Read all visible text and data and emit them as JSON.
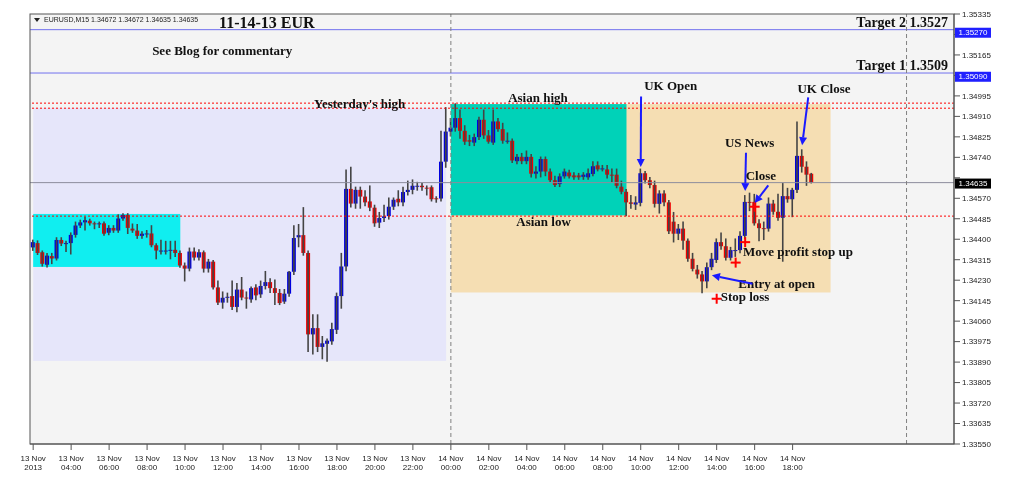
{
  "chart_data": {
    "type": "candlestick",
    "title": "11-14-13  EUR",
    "subtitle": "EURUSD,M15  1.34672 1.34672 1.34635 1.34635",
    "x": [
      "2013-11-13T02:00",
      "2013-11-13T02:15",
      "2013-11-13T02:30",
      "2013-11-13T02:45",
      "2013-11-13T03:00",
      "2013-11-13T03:15",
      "2013-11-13T03:30",
      "2013-11-13T03:45",
      "2013-11-13T04:00",
      "2013-11-13T04:15",
      "2013-11-13T04:30",
      "2013-11-13T04:45",
      "2013-11-13T05:00",
      "2013-11-13T05:15",
      "2013-11-13T05:30",
      "2013-11-13T05:45",
      "2013-11-13T06:00",
      "2013-11-13T06:15",
      "2013-11-13T06:30",
      "2013-11-13T06:45",
      "2013-11-13T07:00",
      "2013-11-13T07:15",
      "2013-11-13T07:30",
      "2013-11-13T07:45",
      "2013-11-13T08:00",
      "2013-11-13T08:15",
      "2013-11-13T08:30",
      "2013-11-13T08:45",
      "2013-11-13T09:00",
      "2013-11-13T09:15",
      "2013-11-13T09:30",
      "2013-11-13T09:45",
      "2013-11-13T10:00",
      "2013-11-13T10:15",
      "2013-11-13T10:30",
      "2013-11-13T10:45",
      "2013-11-13T11:00",
      "2013-11-13T11:15",
      "2013-11-13T11:30",
      "2013-11-13T11:45",
      "2013-11-13T12:00",
      "2013-11-13T12:15",
      "2013-11-13T12:30",
      "2013-11-13T12:45",
      "2013-11-13T13:00",
      "2013-11-13T13:15",
      "2013-11-13T13:30",
      "2013-11-13T13:45",
      "2013-11-13T14:00",
      "2013-11-13T14:15",
      "2013-11-13T14:30",
      "2013-11-13T14:45",
      "2013-11-13T15:00",
      "2013-11-13T15:15",
      "2013-11-13T15:30",
      "2013-11-13T15:45",
      "2013-11-13T16:00",
      "2013-11-13T16:15",
      "2013-11-13T16:30",
      "2013-11-13T16:45",
      "2013-11-13T17:00",
      "2013-11-13T17:15",
      "2013-11-13T17:30",
      "2013-11-13T17:45",
      "2013-11-13T18:00",
      "2013-11-13T18:15",
      "2013-11-13T18:30",
      "2013-11-13T18:45",
      "2013-11-13T19:00",
      "2013-11-13T19:15",
      "2013-11-13T19:30",
      "2013-11-13T19:45",
      "2013-11-13T20:00",
      "2013-11-13T20:15",
      "2013-11-13T20:30",
      "2013-11-13T20:45",
      "2013-11-13T21:00",
      "2013-11-13T21:15",
      "2013-11-13T21:30",
      "2013-11-13T21:45",
      "2013-11-13T22:00",
      "2013-11-13T22:15",
      "2013-11-13T22:30",
      "2013-11-13T22:45",
      "2013-11-13T23:00",
      "2013-11-13T23:15",
      "2013-11-13T23:30",
      "2013-11-13T23:45",
      "2013-11-14T00:00",
      "2013-11-14T00:15",
      "2013-11-14T00:30",
      "2013-11-14T00:45",
      "2013-11-14T01:00",
      "2013-11-14T01:15",
      "2013-11-14T01:30",
      "2013-11-14T01:45",
      "2013-11-14T02:00",
      "2013-11-14T02:15",
      "2013-11-14T02:30",
      "2013-11-14T02:45",
      "2013-11-14T03:00",
      "2013-11-14T03:15",
      "2013-11-14T03:30",
      "2013-11-14T03:45",
      "2013-11-14T04:00",
      "2013-11-14T04:15",
      "2013-11-14T04:30",
      "2013-11-14T04:45",
      "2013-11-14T05:00",
      "2013-11-14T05:15",
      "2013-11-14T05:30",
      "2013-11-14T05:45",
      "2013-11-14T06:00",
      "2013-11-14T06:15",
      "2013-11-14T06:30",
      "2013-11-14T06:45",
      "2013-11-14T07:00",
      "2013-11-14T07:15",
      "2013-11-14T07:30",
      "2013-11-14T07:45",
      "2013-11-14T08:00",
      "2013-11-14T08:15",
      "2013-11-14T08:30",
      "2013-11-14T08:45",
      "2013-11-14T09:00",
      "2013-11-14T09:15",
      "2013-11-14T09:30",
      "2013-11-14T09:45",
      "2013-11-14T10:00",
      "2013-11-14T10:15",
      "2013-11-14T10:30",
      "2013-11-14T10:45",
      "2013-11-14T11:00",
      "2013-11-14T11:15",
      "2013-11-14T11:30",
      "2013-11-14T11:45",
      "2013-11-14T12:00",
      "2013-11-14T12:15",
      "2013-11-14T12:30",
      "2013-11-14T12:45",
      "2013-11-14T13:00",
      "2013-11-14T13:15",
      "2013-11-14T13:30",
      "2013-11-14T13:45",
      "2013-11-14T14:00",
      "2013-11-14T14:15",
      "2013-11-14T14:30",
      "2013-11-14T14:45",
      "2013-11-14T15:00",
      "2013-11-14T15:15",
      "2013-11-14T15:30",
      "2013-11-14T15:45",
      "2013-11-14T16:00",
      "2013-11-14T16:15",
      "2013-11-14T16:30",
      "2013-11-14T16:45",
      "2013-11-14T17:00",
      "2013-11-14T17:15",
      "2013-11-14T17:30",
      "2013-11-14T17:45",
      "2013-11-14T18:00",
      "2013-11-14T18:15",
      "2013-11-14T18:30",
      "2013-11-14T18:45",
      "2013-11-14T19:00"
    ],
    "ohlc": [
      [
        1.34366,
        1.34395,
        1.34355,
        1.34388
      ],
      [
        1.34384,
        1.34392,
        1.34338,
        1.34343
      ],
      [
        1.34346,
        1.3435,
        1.3429,
        1.34298
      ],
      [
        1.34294,
        1.3434,
        1.34286,
        1.34332
      ],
      [
        1.3433,
        1.3434,
        1.343,
        1.3432
      ],
      [
        1.3432,
        1.34405,
        1.34315,
        1.34397
      ],
      [
        1.34397,
        1.34405,
        1.34375,
        1.34382
      ],
      [
        1.34382,
        1.3439,
        1.3435,
        1.34384
      ],
      [
        1.34384,
        1.34425,
        1.3434,
        1.34418
      ],
      [
        1.34418,
        1.3447,
        1.3441,
        1.34457
      ],
      [
        1.34457,
        1.34478,
        1.3445,
        1.3447
      ],
      [
        1.3447,
        1.3449,
        1.3444,
        1.34479
      ],
      [
        1.34477,
        1.34482,
        1.3446,
        1.34466
      ],
      [
        1.34466,
        1.3447,
        1.34445,
        1.34465
      ],
      [
        1.34465,
        1.3447,
        1.3445,
        1.34466
      ],
      [
        1.34466,
        1.3447,
        1.34418,
        1.34423
      ],
      [
        1.34427,
        1.34455,
        1.3442,
        1.34447
      ],
      [
        1.34447,
        1.34455,
        1.3443,
        1.34436
      ],
      [
        1.34436,
        1.345,
        1.3443,
        1.34486
      ],
      [
        1.34486,
        1.34505,
        1.3448,
        1.34501
      ],
      [
        1.34501,
        1.34505,
        1.34425,
        1.34447
      ],
      [
        1.34444,
        1.34462,
        1.3443,
        1.34436
      ],
      [
        1.34436,
        1.3446,
        1.34405,
        1.34414
      ],
      [
        1.34414,
        1.3443,
        1.34405,
        1.34423
      ],
      [
        1.34423,
        1.34435,
        1.3441,
        1.34424
      ],
      [
        1.34424,
        1.34455,
        1.3437,
        1.34375
      ],
      [
        1.34375,
        1.3438,
        1.3432,
        1.34353
      ],
      [
        1.34353,
        1.34395,
        1.3434,
        1.34353
      ],
      [
        1.34353,
        1.3439,
        1.3434,
        1.34353
      ],
      [
        1.34353,
        1.3439,
        1.3432,
        1.34356
      ],
      [
        1.34356,
        1.3439,
        1.3433,
        1.34343
      ],
      [
        1.34343,
        1.3435,
        1.34285,
        1.34291
      ],
      [
        1.34291,
        1.343,
        1.34228,
        1.34278
      ],
      [
        1.34278,
        1.34362,
        1.3427,
        1.34349
      ],
      [
        1.34349,
        1.34362,
        1.34315,
        1.34324
      ],
      [
        1.34324,
        1.34355,
        1.34315,
        1.34346
      ],
      [
        1.34346,
        1.3435,
        1.34265,
        1.34278
      ],
      [
        1.34278,
        1.34315,
        1.34265,
        1.34307
      ],
      [
        1.34307,
        1.3431,
        1.34195,
        1.342
      ],
      [
        1.342,
        1.34225,
        1.3413,
        1.34137
      ],
      [
        1.34137,
        1.3418,
        1.34115,
        1.34157
      ],
      [
        1.34157,
        1.34175,
        1.3414,
        1.34161
      ],
      [
        1.34164,
        1.34225,
        1.3411,
        1.34119
      ],
      [
        1.34119,
        1.34215,
        1.341,
        1.34191
      ],
      [
        1.34191,
        1.3424,
        1.3415,
        1.34158
      ],
      [
        1.34158,
        1.3418,
        1.34115,
        1.34154
      ],
      [
        1.3415,
        1.342,
        1.3414,
        1.34197
      ],
      [
        1.342,
        1.3421,
        1.3415,
        1.34167
      ],
      [
        1.34171,
        1.34225,
        1.3416,
        1.34206
      ],
      [
        1.34206,
        1.34265,
        1.34195,
        1.34222
      ],
      [
        1.34222,
        1.34235,
        1.3418,
        1.34197
      ],
      [
        1.34197,
        1.3423,
        1.3413,
        1.34177
      ],
      [
        1.34177,
        1.3419,
        1.3413,
        1.34135
      ],
      [
        1.34141,
        1.3419,
        1.34135,
        1.34174
      ],
      [
        1.34174,
        1.34265,
        1.34165,
        1.34265
      ],
      [
        1.34265,
        1.34455,
        1.34255,
        1.34405
      ],
      [
        1.34408,
        1.3446,
        1.3437,
        1.34417
      ],
      [
        1.34417,
        1.3453,
        1.34335,
        1.34343
      ],
      [
        1.34343,
        1.3435,
        1.33935,
        1.34005
      ],
      [
        1.34005,
        1.34085,
        1.33925,
        1.34031
      ],
      [
        1.34031,
        1.34085,
        1.33935,
        1.33953
      ],
      [
        1.33953,
        1.33995,
        1.33905,
        1.33968
      ],
      [
        1.33966,
        1.33985,
        1.33895,
        1.33979
      ],
      [
        1.33976,
        1.3405,
        1.33965,
        1.34027
      ],
      [
        1.34024,
        1.34175,
        1.3401,
        1.34164
      ],
      [
        1.34164,
        1.3434,
        1.34115,
        1.34287
      ],
      [
        1.34287,
        1.34686,
        1.3427,
        1.34609
      ],
      [
        1.34609,
        1.34698,
        1.34535,
        1.34548
      ],
      [
        1.34548,
        1.34615,
        1.3453,
        1.34605
      ],
      [
        1.34605,
        1.34615,
        1.3453,
        1.34577
      ],
      [
        1.34577,
        1.346,
        1.3454,
        1.34553
      ],
      [
        1.34557,
        1.3462,
        1.3452,
        1.34531
      ],
      [
        1.34531,
        1.3454,
        1.34455,
        1.34466
      ],
      [
        1.34469,
        1.3451,
        1.3445,
        1.34488
      ],
      [
        1.34488,
        1.3454,
        1.34475,
        1.34495
      ],
      [
        1.34496,
        1.3457,
        1.34485,
        1.34535
      ],
      [
        1.34535,
        1.3457,
        1.34525,
        1.34564
      ],
      [
        1.34568,
        1.346,
        1.3454,
        1.34553
      ],
      [
        1.34553,
        1.34615,
        1.3454,
        1.34596
      ],
      [
        1.34596,
        1.3464,
        1.34585,
        1.34605
      ],
      [
        1.34605,
        1.34645,
        1.3459,
        1.34622
      ],
      [
        1.34622,
        1.34635,
        1.34605,
        1.34622
      ],
      [
        1.34622,
        1.3463,
        1.34605,
        1.34616
      ],
      [
        1.34614,
        1.3462,
        1.34585,
        1.34612
      ],
      [
        1.34616,
        1.3462,
        1.3456,
        1.34566
      ],
      [
        1.3457,
        1.34575,
        1.34555,
        1.34567
      ],
      [
        1.34569,
        1.34847,
        1.3456,
        1.34722
      ],
      [
        1.34722,
        1.34945,
        1.347,
        1.34847
      ],
      [
        1.34847,
        1.349,
        1.3483,
        1.34863
      ],
      [
        1.34863,
        1.34961,
        1.3485,
        1.34903
      ],
      [
        1.34903,
        1.34935,
        1.3482,
        1.3485
      ],
      [
        1.3485,
        1.3487,
        1.34795,
        1.34805
      ],
      [
        1.34811,
        1.3483,
        1.3479,
        1.34805
      ],
      [
        1.34801,
        1.34835,
        1.3479,
        1.34824
      ],
      [
        1.34824,
        1.34905,
        1.34815,
        1.34896
      ],
      [
        1.34896,
        1.34935,
        1.3482,
        1.34831
      ],
      [
        1.34831,
        1.3485,
        1.348,
        1.34805
      ],
      [
        1.34801,
        1.34935,
        1.34795,
        1.34889
      ],
      [
        1.34889,
        1.349,
        1.3485,
        1.34857
      ],
      [
        1.34857,
        1.3488,
        1.348,
        1.34809
      ],
      [
        1.34809,
        1.3484,
        1.348,
        1.34809
      ],
      [
        1.34809,
        1.34815,
        1.3472,
        1.34727
      ],
      [
        1.34724,
        1.3475,
        1.34715,
        1.34742
      ],
      [
        1.34742,
        1.34755,
        1.34715,
        1.34724
      ],
      [
        1.34724,
        1.34765,
        1.34715,
        1.34742
      ],
      [
        1.34742,
        1.3475,
        1.3466,
        1.34672
      ],
      [
        1.34672,
        1.347,
        1.34655,
        1.34681
      ],
      [
        1.34681,
        1.3474,
        1.3466,
        1.34733
      ],
      [
        1.34733,
        1.3474,
        1.34665,
        1.34681
      ],
      [
        1.34681,
        1.3469,
        1.3464,
        1.34645
      ],
      [
        1.34645,
        1.3466,
        1.3462,
        1.34625
      ],
      [
        1.34629,
        1.3467,
        1.3462,
        1.34661
      ],
      [
        1.34661,
        1.3469,
        1.34655,
        1.34681
      ],
      [
        1.34677,
        1.34685,
        1.34655,
        1.34661
      ],
      [
        1.34665,
        1.34675,
        1.3465,
        1.34657
      ],
      [
        1.34665,
        1.34672,
        1.3465,
        1.34657
      ],
      [
        1.34659,
        1.34675,
        1.3465,
        1.34668
      ],
      [
        1.34657,
        1.3469,
        1.3465,
        1.34674
      ],
      [
        1.34671,
        1.3472,
        1.34665,
        1.34703
      ],
      [
        1.34707,
        1.3472,
        1.34685,
        1.3469
      ],
      [
        1.34694,
        1.34705,
        1.34685,
        1.34694
      ],
      [
        1.3469,
        1.34705,
        1.34655,
        1.34668
      ],
      [
        1.34668,
        1.3469,
        1.3464,
        1.34665
      ],
      [
        1.34668,
        1.3469,
        1.34615,
        1.34622
      ],
      [
        1.34618,
        1.3464,
        1.3459,
        1.34597
      ],
      [
        1.34597,
        1.34605,
        1.34499,
        1.34553
      ],
      [
        1.34553,
        1.3458,
        1.3453,
        1.34547
      ],
      [
        1.34544,
        1.34575,
        1.34525,
        1.34553
      ],
      [
        1.34551,
        1.3469,
        1.3454,
        1.34674
      ],
      [
        1.34674,
        1.3468,
        1.34635,
        1.34645
      ],
      [
        1.34645,
        1.34655,
        1.34615,
        1.34625
      ],
      [
        1.34625,
        1.3464,
        1.34535,
        1.34547
      ],
      [
        1.34547,
        1.346,
        1.3451,
        1.3459
      ],
      [
        1.3459,
        1.346,
        1.3454,
        1.34553
      ],
      [
        1.34553,
        1.3456,
        1.34425,
        1.34433
      ],
      [
        1.34473,
        1.3451,
        1.3439,
        1.34423
      ],
      [
        1.34423,
        1.3446,
        1.344,
        1.34444
      ],
      [
        1.34444,
        1.3447,
        1.3436,
        1.34394
      ],
      [
        1.34394,
        1.344,
        1.3431,
        1.34319
      ],
      [
        1.34319,
        1.3434,
        1.3427,
        1.34277
      ],
      [
        1.34274,
        1.3429,
        1.3424,
        1.34254
      ],
      [
        1.34254,
        1.34265,
        1.34179,
        1.34225
      ],
      [
        1.34225,
        1.343,
        1.342,
        1.34284
      ],
      [
        1.34284,
        1.3434,
        1.34275,
        1.34319
      ],
      [
        1.34314,
        1.344,
        1.34305,
        1.34388
      ],
      [
        1.34388,
        1.34425,
        1.3436,
        1.34371
      ],
      [
        1.34371,
        1.344,
        1.34315,
        1.34323
      ],
      [
        1.34323,
        1.34365,
        1.34315,
        1.34355
      ],
      [
        1.34355,
        1.344,
        1.3433,
        1.34355
      ],
      [
        1.34355,
        1.3443,
        1.34345,
        1.34414
      ],
      [
        1.34414,
        1.3458,
        1.34405,
        1.34555
      ],
      [
        1.34555,
        1.3459,
        1.3452,
        1.34553
      ],
      [
        1.34555,
        1.34585,
        1.3446,
        1.34466
      ],
      [
        1.34466,
        1.3448,
        1.34395,
        1.34446
      ],
      [
        1.34446,
        1.3447,
        1.344,
        1.34444
      ],
      [
        1.34444,
        1.3457,
        1.34435,
        1.34548
      ],
      [
        1.34548,
        1.3456,
        1.34505,
        1.34514
      ],
      [
        1.34514,
        1.34585,
        1.3448,
        1.34489
      ],
      [
        1.34489,
        1.3463,
        1.3431,
        1.34579
      ],
      [
        1.34579,
        1.3461,
        1.34555,
        1.34566
      ],
      [
        1.34566,
        1.3461,
        1.34495,
        1.34605
      ],
      [
        1.34605,
        1.34885,
        1.34595,
        1.34746
      ],
      [
        1.34746,
        1.3477,
        1.3468,
        1.34701
      ],
      [
        1.34701,
        1.3472,
        1.34625,
        1.34668
      ],
      [
        1.34672,
        1.34672,
        1.34635,
        1.34635
      ]
    ],
    "series": [
      {
        "type": "scatter",
        "color": "#ff0000",
        "marker": "cross",
        "x": [
          "2013-11-14T16:00",
          "2013-11-14T15:30",
          "2013-11-14T15:00",
          "2013-11-14T14:00"
        ],
        "values": [
          1.34535,
          1.34388,
          1.34303,
          1.34153
        ]
      }
    ],
    "xlim": [
      "2013-11-13T01:50",
      "2013-11-15T02:30"
    ],
    "xticks": [
      {
        "value": "2013-11-13T02:00",
        "label": "13 Nov 2013"
      },
      {
        "value": "2013-11-13T04:00",
        "label": "13 Nov 04:00"
      },
      {
        "value": "2013-11-13T06:00",
        "label": "13 Nov 06:00"
      },
      {
        "value": "2013-11-13T08:00",
        "label": "13 Nov 08:00"
      },
      {
        "value": "2013-11-13T10:00",
        "label": "13 Nov 10:00"
      },
      {
        "value": "2013-11-13T12:00",
        "label": "13 Nov 12:00"
      },
      {
        "value": "2013-11-13T14:00",
        "label": "13 Nov 14:00"
      },
      {
        "value": "2013-11-13T16:00",
        "label": "13 Nov 16:00"
      },
      {
        "value": "2013-11-13T18:00",
        "label": "13 Nov 18:00"
      },
      {
        "value": "2013-11-13T20:00",
        "label": "13 Nov 20:00"
      },
      {
        "value": "2013-11-13T22:00",
        "label": "13 Nov 22:00"
      },
      {
        "value": "2013-11-14T00:00",
        "label": "14 Nov 00:00"
      },
      {
        "value": "2013-11-14T02:00",
        "label": "14 Nov 02:00"
      },
      {
        "value": "2013-11-14T04:00",
        "label": "14 Nov 04:00"
      },
      {
        "value": "2013-11-14T06:00",
        "label": "14 Nov 06:00"
      },
      {
        "value": "2013-11-14T08:00",
        "label": "14 Nov 08:00"
      },
      {
        "value": "2013-11-14T10:00",
        "label": "14 Nov 10:00"
      },
      {
        "value": "2013-11-14T12:00",
        "label": "14 Nov 12:00"
      },
      {
        "value": "2013-11-14T14:00",
        "label": "14 Nov 14:00"
      },
      {
        "value": "2013-11-14T16:00",
        "label": "14 Nov 16:00"
      },
      {
        "value": "2013-11-14T18:00",
        "label": "14 Nov 18:00"
      }
    ],
    "ylim": [
      1.3355,
      1.35335
    ],
    "yticks": [
      {
        "value": 1.3355,
        "label": "1.33550"
      },
      1.33635,
      {
        "value": 1.3372,
        "label": "1.33720"
      },
      1.33805,
      {
        "value": 1.3389,
        "label": "1.33890"
      },
      1.33975,
      {
        "value": 1.3406,
        "label": "1.34060"
      },
      1.34145,
      {
        "value": 1.3423,
        "label": "1.34230"
      },
      1.34315,
      {
        "value": 1.344,
        "label": "1.34400"
      },
      1.34485,
      {
        "value": 1.3457,
        "label": "1.34570"
      },
      {
        "value": 1.34655,
        "label": null
      },
      {
        "value": 1.3474,
        "label": "1.34740"
      },
      1.34825,
      {
        "value": 1.3491,
        "label": "1.34910"
      },
      1.34995,
      {
        "value": 1.3508,
        "label": null
      },
      1.35165,
      {
        "value": 1.3525,
        "label": null
      },
      1.35335
    ],
    "bands": [
      {
        "axis": "x",
        "from": "2013-11-13T02:00",
        "to": "2013-11-13T23:45",
        "color": "#e6e6fa"
      },
      {
        "axis": "x",
        "from": "2013-11-13T02:00",
        "to": "2013-11-13T09:45",
        "color": "#10eef0"
      },
      {
        "axis": "x",
        "from": "2013-11-14T00:00",
        "to": "2013-11-14T20:00",
        "color": "#f5deb3"
      },
      {
        "axis": "x",
        "from": "2013-11-14T00:00",
        "to": "2013-11-14T09:15",
        "color": "#00d2b8"
      }
    ],
    "ref_lines": [
      {
        "axis": "y",
        "value": 1.3527,
        "label": "Target 2  1.3527",
        "color": "#7070ee",
        "line_style": "solid"
      },
      {
        "axis": "y",
        "value": 1.3509,
        "label": "Target 1  1.3509",
        "color": "#7070ee",
        "line_style": "solid"
      },
      {
        "axis": "y",
        "value": 1.34635,
        "color": "#8c8c9c",
        "line_style": "solid"
      },
      {
        "axis": "y",
        "value": 1.34965,
        "color": "#ff0000",
        "line_style": "dotted"
      },
      {
        "axis": "y",
        "value": 1.34944,
        "color": "#ff0000",
        "line_style": "dotted"
      },
      {
        "axis": "y",
        "value": 1.34496,
        "color": "#ff0000",
        "line_style": "dotted"
      },
      {
        "axis": "x",
        "value": "2013-11-14T00:00",
        "color": "#808080",
        "line_style": "dashed"
      },
      {
        "axis": "x",
        "value": "2013-11-15T00:00",
        "color": "#808080",
        "line_style": "dashed"
      }
    ],
    "annotations": [
      "See Blog for commentary",
      "Yesterday's high",
      "Asian high",
      "Asian low",
      {
        "text": "UK Open",
        "x": "2013-11-14T10:00",
        "y": 1.347
      },
      {
        "text": "UK Close",
        "x": "2013-11-14T18:30",
        "y": 1.3479
      },
      {
        "text": "US News",
        "x": "2013-11-14T15:30",
        "y": 1.346
      },
      {
        "text": "Close",
        "x": "2013-11-14T16:00",
        "y": 1.3455
      },
      "Move profit stop up",
      {
        "text": "Entry at open",
        "x": "2013-11-14T13:45",
        "y": 1.3425
      },
      "Stop loss",
      "1.35270",
      "1.35090",
      "1.34635"
    ]
  }
}
